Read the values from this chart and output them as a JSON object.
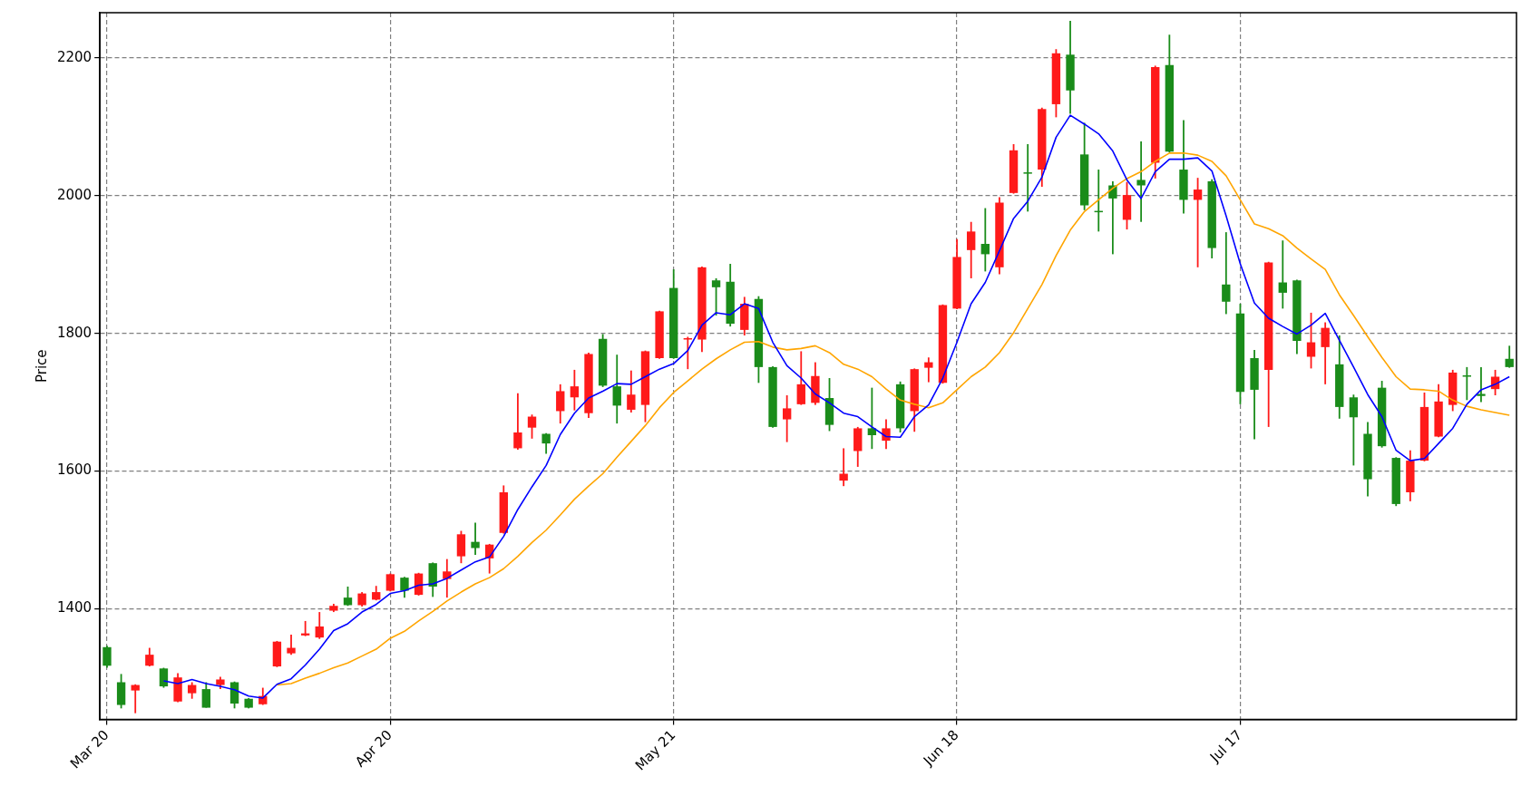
{
  "chart_data": {
    "type": "candlestick",
    "ylabel": "Price",
    "categories": [
      "Mar 20",
      null,
      null,
      null,
      null,
      null,
      null,
      null,
      null,
      null,
      null,
      null,
      null,
      null,
      null,
      null,
      null,
      null,
      null,
      null,
      "Apr 20",
      null,
      null,
      null,
      null,
      null,
      null,
      null,
      null,
      null,
      null,
      null,
      null,
      null,
      null,
      null,
      null,
      null,
      null,
      null,
      "May 21",
      null,
      null,
      null,
      null,
      null,
      null,
      null,
      null,
      null,
      null,
      null,
      null,
      null,
      null,
      null,
      null,
      null,
      null,
      null,
      "Jun 18",
      null,
      null,
      null,
      null,
      null,
      null,
      null,
      null,
      null,
      null,
      null,
      null,
      null,
      null,
      null,
      null,
      null,
      null,
      null,
      "Jul 17",
      null,
      null,
      null,
      null,
      null,
      null,
      null,
      null,
      null,
      null,
      null,
      null,
      null,
      null,
      null,
      null,
      null,
      null,
      null
    ],
    "ohlc": [
      [
        1344,
        1346,
        1314,
        1317
      ],
      [
        1293,
        1305,
        1255,
        1260
      ],
      [
        1281,
        1290,
        1248,
        1289
      ],
      [
        1317,
        1343,
        1316,
        1333
      ],
      [
        1313,
        1314,
        1285,
        1287
      ],
      [
        1265,
        1306,
        1264,
        1300
      ],
      [
        1277,
        1293,
        1269,
        1289
      ],
      [
        1283,
        1293,
        1256,
        1256
      ],
      [
        1289,
        1301,
        1283,
        1297
      ],
      [
        1293,
        1294,
        1255,
        1262
      ],
      [
        1269,
        1270,
        1255,
        1256
      ],
      [
        1261,
        1285,
        1260,
        1273
      ],
      [
        1316,
        1353,
        1315,
        1352
      ],
      [
        1335,
        1362,
        1333,
        1343
      ],
      [
        1361,
        1382,
        1360,
        1364
      ],
      [
        1358,
        1395,
        1356,
        1374
      ],
      [
        1397,
        1407,
        1395,
        1404
      ],
      [
        1416,
        1432,
        1404,
        1405
      ],
      [
        1405,
        1424,
        1403,
        1422
      ],
      [
        1413,
        1433,
        1412,
        1424
      ],
      [
        1426,
        1451,
        1425,
        1450
      ],
      [
        1445,
        1446,
        1416,
        1426
      ],
      [
        1420,
        1452,
        1419,
        1451
      ],
      [
        1466,
        1467,
        1417,
        1432
      ],
      [
        1443,
        1472,
        1416,
        1454
      ],
      [
        1476,
        1513,
        1466,
        1508
      ],
      [
        1497,
        1525,
        1478,
        1488
      ],
      [
        1473,
        1494,
        1451,
        1493
      ],
      [
        1510,
        1579,
        1509,
        1569
      ],
      [
        1633,
        1713,
        1631,
        1656
      ],
      [
        1663,
        1682,
        1647,
        1679
      ],
      [
        1654,
        1655,
        1625,
        1640
      ],
      [
        1687,
        1726,
        1669,
        1716
      ],
      [
        1707,
        1747,
        1688,
        1723
      ],
      [
        1684,
        1772,
        1677,
        1770
      ],
      [
        1792,
        1799,
        1722,
        1724
      ],
      [
        1723,
        1769,
        1669,
        1695
      ],
      [
        1689,
        1746,
        1685,
        1711
      ],
      [
        1696,
        1775,
        1671,
        1774
      ],
      [
        1764,
        1833,
        1763,
        1832
      ],
      [
        1866,
        1893,
        1763,
        1764
      ],
      [
        1791,
        1795,
        1748,
        1793
      ],
      [
        1791,
        1897,
        1773,
        1896
      ],
      [
        1877,
        1880,
        1826,
        1867
      ],
      [
        1875,
        1901,
        1810,
        1814
      ],
      [
        1805,
        1853,
        1797,
        1843
      ],
      [
        1850,
        1854,
        1728,
        1751
      ],
      [
        1751,
        1752,
        1663,
        1664
      ],
      [
        1675,
        1710,
        1642,
        1691
      ],
      [
        1697,
        1774,
        1696,
        1726
      ],
      [
        1699,
        1758,
        1696,
        1738
      ],
      [
        1706,
        1735,
        1658,
        1667
      ],
      [
        1586,
        1633,
        1578,
        1596
      ],
      [
        1629,
        1664,
        1606,
        1662
      ],
      [
        1662,
        1721,
        1632,
        1652
      ],
      [
        1644,
        1675,
        1632,
        1662
      ],
      [
        1726,
        1730,
        1656,
        1662
      ],
      [
        1687,
        1749,
        1657,
        1748
      ],
      [
        1750,
        1765,
        1729,
        1758
      ],
      [
        1728,
        1842,
        1727,
        1841
      ],
      [
        1836,
        1937,
        1835,
        1911
      ],
      [
        1921,
        1962,
        1880,
        1948
      ],
      [
        1930,
        1982,
        1890,
        1915
      ],
      [
        1896,
        1998,
        1886,
        1990
      ],
      [
        2004,
        2075,
        2003,
        2066
      ],
      [
        2034,
        2075,
        1977,
        2032
      ],
      [
        2038,
        2128,
        2013,
        2126
      ],
      [
        2133,
        2213,
        2114,
        2207
      ],
      [
        2205,
        2254,
        2119,
        2153
      ],
      [
        2060,
        2106,
        1979,
        1986
      ],
      [
        1978,
        2038,
        1948,
        1976
      ],
      [
        2015,
        2021,
        1915,
        1996
      ],
      [
        1965,
        2020,
        1951,
        2001
      ],
      [
        2023,
        2079,
        1962,
        2015
      ],
      [
        2048,
        2189,
        2025,
        2187
      ],
      [
        2190,
        2234,
        2063,
        2064
      ],
      [
        2038,
        2110,
        1974,
        1994
      ],
      [
        1994,
        2026,
        1896,
        2009
      ],
      [
        2021,
        2024,
        1909,
        1924
      ],
      [
        1871,
        1947,
        1828,
        1846
      ],
      [
        1829,
        1843,
        1697,
        1715
      ],
      [
        1764,
        1776,
        1646,
        1718
      ],
      [
        1747,
        1904,
        1664,
        1903
      ],
      [
        1874,
        1935,
        1836,
        1859
      ],
      [
        1877,
        1878,
        1770,
        1789
      ],
      [
        1766,
        1830,
        1749,
        1787
      ],
      [
        1780,
        1816,
        1726,
        1808
      ],
      [
        1755,
        1797,
        1676,
        1693
      ],
      [
        1707,
        1711,
        1608,
        1678
      ],
      [
        1654,
        1671,
        1563,
        1588
      ],
      [
        1721,
        1731,
        1634,
        1636
      ],
      [
        1619,
        1620,
        1549,
        1552
      ],
      [
        1569,
        1630,
        1556,
        1615
      ],
      [
        1615,
        1714,
        1614,
        1693
      ],
      [
        1650,
        1726,
        1649,
        1701
      ],
      [
        1696,
        1747,
        1687,
        1743
      ],
      [
        1739,
        1751,
        1703,
        1737
      ],
      [
        1712,
        1751,
        1700,
        1709
      ],
      [
        1719,
        1747,
        1710,
        1737
      ],
      [
        1763,
        1782,
        1750,
        1751
      ]
    ],
    "colors": [
      "#1a8c1a",
      "#1a8c1a",
      "#ff1a1a",
      "#ff1a1a",
      "#1a8c1a",
      "#ff1a1a",
      "#ff1a1a",
      "#1a8c1a",
      "#ff1a1a",
      "#1a8c1a",
      "#1a8c1a",
      "#ff1a1a",
      "#ff1a1a",
      "#ff1a1a",
      "#ff1a1a",
      "#ff1a1a",
      "#ff1a1a",
      "#1a8c1a",
      "#ff1a1a",
      "#ff1a1a",
      "#ff1a1a",
      "#1a8c1a",
      "#ff1a1a",
      "#1a8c1a",
      "#ff1a1a",
      "#ff1a1a",
      "#1a8c1a",
      "#ff1a1a",
      "#ff1a1a",
      "#ff1a1a",
      "#ff1a1a",
      "#1a8c1a",
      "#ff1a1a",
      "#ff1a1a",
      "#ff1a1a",
      "#1a8c1a",
      "#1a8c1a",
      "#ff1a1a",
      "#ff1a1a",
      "#ff1a1a",
      "#1a8c1a",
      "#ff1a1a",
      "#ff1a1a",
      "#1a8c1a",
      "#1a8c1a",
      "#ff1a1a",
      "#1a8c1a",
      "#1a8c1a",
      "#ff1a1a",
      "#ff1a1a",
      "#ff1a1a",
      "#1a8c1a",
      "#ff1a1a",
      "#ff1a1a",
      "#1a8c1a",
      "#ff1a1a",
      "#1a8c1a",
      "#ff1a1a",
      "#ff1a1a",
      "#ff1a1a",
      "#ff1a1a",
      "#ff1a1a",
      "#1a8c1a",
      "#ff1a1a",
      "#ff1a1a",
      "#1a8c1a",
      "#ff1a1a",
      "#ff1a1a",
      "#1a8c1a",
      "#1a8c1a",
      "#1a8c1a",
      "#1a8c1a",
      "#ff1a1a",
      "#1a8c1a",
      "#ff1a1a",
      "#1a8c1a",
      "#1a8c1a",
      "#ff1a1a",
      "#1a8c1a",
      "#1a8c1a",
      "#1a8c1a",
      "#1a8c1a",
      "#ff1a1a",
      "#1a8c1a",
      "#1a8c1a",
      "#ff1a1a",
      "#ff1a1a",
      "#1a8c1a",
      "#1a8c1a",
      "#1a8c1a",
      "#1a8c1a",
      "#1a8c1a",
      "#ff1a1a",
      "#ff1a1a",
      "#ff1a1a",
      "#ff1a1a",
      "#1a8c1a",
      "#1a8c1a",
      "#ff1a1a",
      "#1a8c1a"
    ],
    "series": [
      {
        "type": "line",
        "color": "#0000ff",
        "values": [
          null,
          null,
          null,
          null,
          1295,
          1291,
          1297,
          1291,
          1287,
          1282,
          1273,
          1270,
          1290,
          1298,
          1318,
          1341,
          1368,
          1378,
          1395,
          1406,
          1422,
          1426,
          1434,
          1436,
          1444,
          1456,
          1468,
          1475,
          1505,
          1544,
          1577,
          1608,
          1653,
          1684,
          1706,
          1716,
          1727,
          1726,
          1737,
          1748,
          1756,
          1775,
          1812,
          1830,
          1827,
          1843,
          1836,
          1787,
          1753,
          1735,
          1712,
          1699,
          1684,
          1679,
          1664,
          1650,
          1649,
          1679,
          1696,
          1735,
          1787,
          1843,
          1874,
          1920,
          1967,
          1992,
          2027,
          2085,
          2117,
          2104,
          2090,
          2065,
          2023,
          1996,
          2035,
          2053,
          2053,
          2055,
          2036,
          1971,
          1901,
          1844,
          1822,
          1810,
          1799,
          1812,
          1829,
          1790,
          1751,
          1711,
          1679,
          1630,
          1615,
          1618,
          1640,
          1662,
          1697,
          1718,
          1726,
          1737
        ]
      },
      {
        "type": "line",
        "color": "#ffa500",
        "values": [
          null,
          null,
          null,
          null,
          null,
          null,
          null,
          null,
          null,
          null,
          null,
          null,
          1289,
          1291,
          1299,
          1306,
          1314,
          1321,
          1331,
          1341,
          1357,
          1367,
          1382,
          1396,
          1411,
          1424,
          1436,
          1445,
          1458,
          1476,
          1496,
          1514,
          1536,
          1559,
          1578,
          1596,
          1620,
          1643,
          1666,
          1692,
          1714,
          1731,
          1748,
          1763,
          1776,
          1787,
          1788,
          1780,
          1776,
          1778,
          1782,
          1772,
          1755,
          1748,
          1737,
          1719,
          1703,
          1697,
          1692,
          1699,
          1718,
          1737,
          1751,
          1772,
          1801,
          1836,
          1871,
          1913,
          1950,
          1977,
          1994,
          2011,
          2025,
          2035,
          2050,
          2062,
          2062,
          2059,
          2050,
          2029,
          1994,
          1959,
          1952,
          1942,
          1924,
          1908,
          1893,
          1856,
          1826,
          1795,
          1765,
          1737,
          1719,
          1718,
          1716,
          1703,
          1694,
          1689,
          1685,
          1681
        ]
      }
    ],
    "ylim": [
      1239,
      2266
    ],
    "yticks": [
      1400,
      1600,
      1800,
      2000,
      2200
    ],
    "grid": true,
    "legend": false
  }
}
